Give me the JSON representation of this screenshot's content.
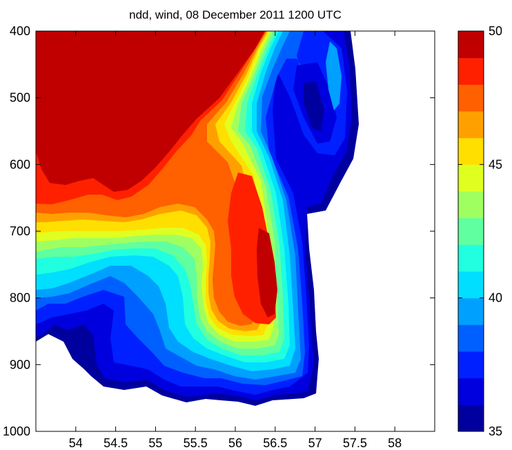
{
  "chart_data": {
    "type": "contour",
    "title": "ndd, wind, 08 December 2011 1200 UTC",
    "xlabel": "",
    "ylabel": "",
    "xlim": [
      53.5,
      58.5
    ],
    "ylim": [
      400,
      1000
    ],
    "y_reversed": true,
    "x_ticks": [
      "54",
      "54.5",
      "55",
      "55.5",
      "56",
      "56.5",
      "57",
      "57.5",
      "58"
    ],
    "y_ticks": [
      "400",
      "500",
      "600",
      "700",
      "800",
      "900",
      "1000"
    ],
    "colorbar": {
      "range": [
        35,
        50
      ],
      "ticks": [
        "35",
        "40",
        "45",
        "50"
      ],
      "levels": [
        35,
        36,
        37,
        38,
        39,
        40,
        41,
        42,
        43,
        44,
        45,
        46,
        47,
        48,
        49,
        50
      ],
      "colors": [
        "#00009f",
        "#0000df",
        "#0020ff",
        "#0060ff",
        "#00a0ff",
        "#00dfff",
        "#20ffdf",
        "#60ffa0",
        "#a0ff60",
        "#dfff20",
        "#ffdf00",
        "#ffa000",
        "#ff6000",
        "#ff2000",
        "#c00000"
      ]
    },
    "features": [
      {
        "name": "high-wind region (>=50)",
        "x_range": [
          53.5,
          56.4
        ],
        "y_range": [
          400,
          640
        ]
      },
      {
        "name": "secondary maximum (~49)",
        "x_center": 56.4,
        "y_center": 730
      },
      {
        "name": "low-wind band (~36)",
        "x_center": 56.9,
        "y_center": 460
      }
    ]
  }
}
